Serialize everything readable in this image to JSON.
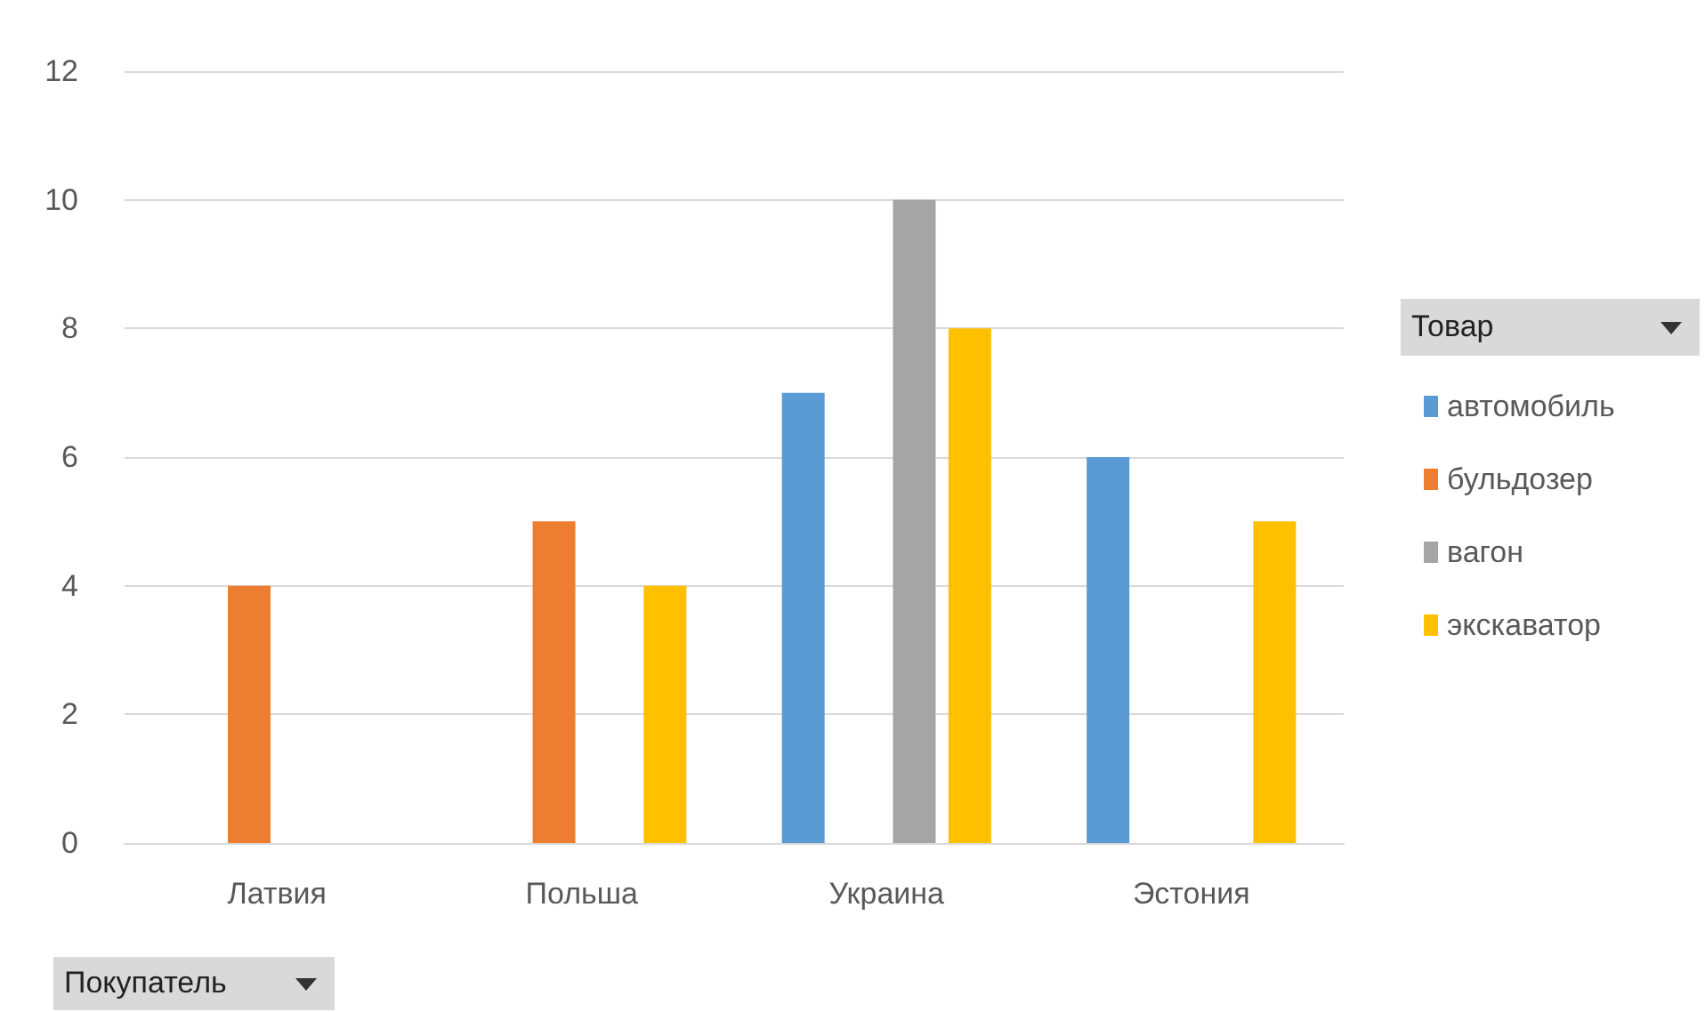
{
  "chart_data": {
    "type": "bar",
    "legend_title": "Товар",
    "xlabel": "Покупатель",
    "categories": [
      "Латвия",
      "Польша",
      "Украина",
      "Эстония"
    ],
    "series": [
      {
        "name": "автомобиль",
        "color": "#5b9bd5",
        "values": [
          null,
          null,
          7,
          6
        ]
      },
      {
        "name": "бульдозер",
        "color": "#ed7d31",
        "values": [
          4,
          5,
          null,
          null
        ]
      },
      {
        "name": "вагон",
        "color": "#a5a5a5",
        "values": [
          null,
          null,
          10,
          null
        ]
      },
      {
        "name": "экскаватор",
        "color": "#ffc000",
        "values": [
          null,
          4,
          8,
          5
        ]
      }
    ],
    "ylim": [
      0,
      12
    ],
    "yticks": [
      0,
      2,
      4,
      6,
      8,
      10,
      12
    ],
    "grid": "y",
    "legend": "right"
  }
}
